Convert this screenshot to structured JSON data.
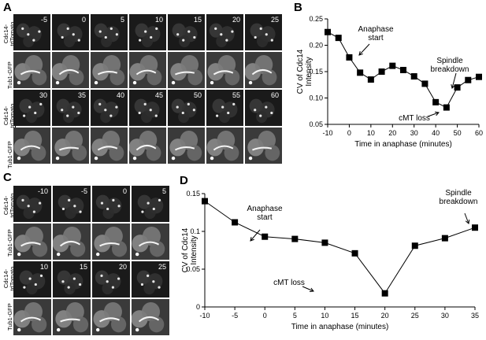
{
  "panels": {
    "A": {
      "letter": "A",
      "times_row1": [
        "-5",
        "0",
        "5",
        "10",
        "15",
        "20",
        "25"
      ],
      "times_row2": [
        "30",
        "35",
        "40",
        "45",
        "50",
        "55",
        "60"
      ]
    },
    "B": {
      "letter": "B"
    },
    "C": {
      "letter": "C",
      "times_row1": [
        "-10",
        "-5",
        "0",
        "5"
      ],
      "times_row2": [
        "10",
        "15",
        "20",
        "25"
      ]
    },
    "D": {
      "letter": "D"
    }
  },
  "row_labels": {
    "cdc14_line1": "Cdc14-",
    "cdc14_line2": "tdTomato",
    "tub1": "Tub1-GFP"
  },
  "chart_data": [
    {
      "type": "line",
      "panel": "B",
      "x": [
        -10,
        -5,
        0,
        5,
        10,
        15,
        20,
        25,
        30,
        35,
        40,
        45,
        50,
        55,
        60
      ],
      "values": [
        0.225,
        0.214,
        0.177,
        0.148,
        0.135,
        0.15,
        0.161,
        0.153,
        0.141,
        0.127,
        0.092,
        0.082,
        0.12,
        0.134,
        0.14
      ],
      "xlabel": "Time in anaphase (minutes)",
      "ylabel_line1": "CV of Cdc14",
      "ylabel_line2": "Intensity",
      "xlim": [
        -10,
        60
      ],
      "ylim": [
        0.05,
        0.25
      ],
      "xticks": [
        "-10",
        "0",
        "10",
        "20",
        "30",
        "40",
        "50",
        "60"
      ],
      "yticks": [
        "0.05",
        "0.10",
        "0.15",
        "0.20",
        "0.25"
      ],
      "annotations": {
        "anaphase_l1": "Anaphase",
        "anaphase_l2": "start",
        "spindle_l1": "Spindle",
        "spindle_l2": "breakdown",
        "cmt": "cMT loss"
      }
    },
    {
      "type": "line",
      "panel": "D",
      "x": [
        -10,
        -5,
        0,
        5,
        10,
        15,
        20,
        25,
        30,
        35
      ],
      "values": [
        0.14,
        0.112,
        0.093,
        0.09,
        0.085,
        0.071,
        0.018,
        0.081,
        0.091,
        0.105
      ],
      "xlabel": "Time in anaphase (minutes)",
      "ylabel_line1": "CV of Cdc14",
      "ylabel_line2": "Intensity",
      "xlim": [
        -10,
        35
      ],
      "ylim": [
        0,
        0.15
      ],
      "xticks": [
        "-10",
        "-5",
        "0",
        "5",
        "10",
        "15",
        "20",
        "25",
        "30",
        "35"
      ],
      "yticks": [
        "0",
        "0.05",
        "0.1",
        "0.15"
      ],
      "annotations": {
        "anaphase_l1": "Anaphase",
        "anaphase_l2": "start",
        "spindle_l1": "Spindle",
        "spindle_l2": "breakdown",
        "cmt": "cMT loss"
      }
    }
  ]
}
